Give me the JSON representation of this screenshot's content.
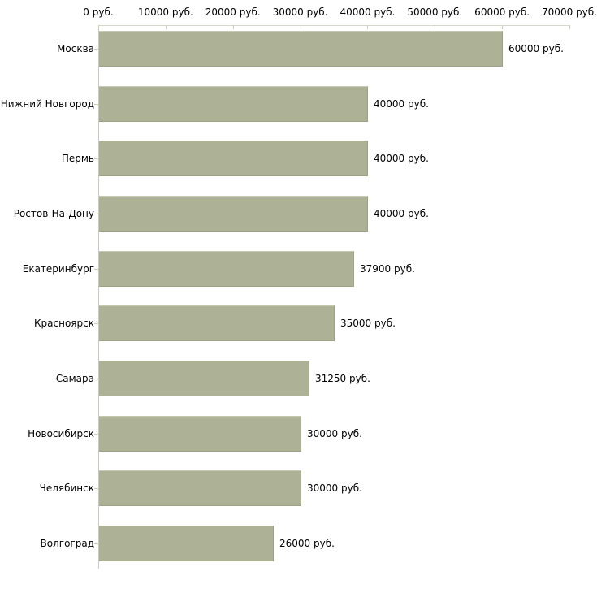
{
  "chart": {
    "background_color": "#ffffff",
    "bar_color": "#adb297",
    "bar_border_light_color": "#c6c9b2",
    "bar_border_dark_color": "#9da283",
    "x_axis_line_color": "#d7d7c9",
    "y_axis_line_color": "#c9c9c1",
    "tick_mark_color": "#cbcbb0",
    "text_color": "#000000"
  },
  "chart_data": {
    "type": "bar",
    "orientation": "horizontal",
    "title": "",
    "xlabel": "",
    "ylabel": "",
    "unit": "руб.",
    "xlim": [
      0,
      70000
    ],
    "grid": false,
    "legend": false,
    "value_label_position": "right-of-bar",
    "categories": [
      "Москва",
      "Нижний Новгород",
      "Пермь",
      "Ростов-На-Дону",
      "Екатеринбург",
      "Красноярск",
      "Самара",
      "Новосибирск",
      "Челябинск",
      "Волгоград"
    ],
    "values": [
      60000,
      40000,
      40000,
      40000,
      37900,
      35000,
      31250,
      30000,
      30000,
      26000
    ],
    "value_labels": [
      "60000 руб.",
      "40000 руб.",
      "40000 руб.",
      "40000 руб.",
      "37900 руб.",
      "35000 руб.",
      "31250 руб.",
      "30000 руб.",
      "30000 руб.",
      "26000 руб."
    ],
    "x_tick_values": [
      0,
      10000,
      20000,
      30000,
      40000,
      50000,
      60000,
      70000
    ],
    "x_tick_labels": [
      "0 руб.",
      "10000 руб.",
      "20000 руб.",
      "30000 руб.",
      "40000 руб.",
      "50000 руб.",
      "60000 руб.",
      "70000 руб."
    ]
  }
}
